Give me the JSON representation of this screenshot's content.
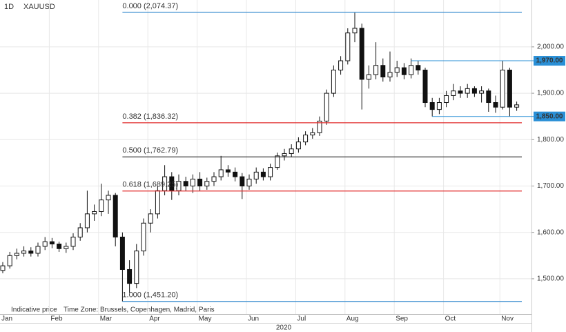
{
  "header": {
    "interval": "1D",
    "symbol": "XAUUSD"
  },
  "footer": {
    "note": "Indicative price",
    "timezone": "Time Zone: Brussels, Copenhagen, Madrid, Paris",
    "year": "2020"
  },
  "chart_data": {
    "type": "candlestick",
    "categories": [
      "Jan",
      null,
      null,
      null,
      null,
      null,
      null,
      "Feb",
      null,
      null,
      null,
      null,
      null,
      null,
      "Mar",
      null,
      null,
      null,
      null,
      null,
      null,
      "Apr",
      null,
      null,
      null,
      null,
      null,
      null,
      "May",
      null,
      null,
      null,
      null,
      null,
      null,
      "Jun",
      null,
      null,
      null,
      null,
      null,
      null,
      "Jul",
      null,
      null,
      null,
      null,
      null,
      null,
      "Aug",
      null,
      null,
      null,
      null,
      null,
      null,
      "Sep",
      null,
      null,
      null,
      null,
      null,
      null,
      "Oct",
      null,
      null,
      null,
      null,
      null,
      null,
      null,
      "Nov",
      null,
      null
    ],
    "open": [
      1518,
      1528,
      1550,
      1555,
      1560,
      1555,
      1570,
      1580,
      1575,
      1565,
      1570,
      1590,
      1610,
      1640,
      1645,
      1670,
      1680,
      1590,
      1520,
      1490,
      1560,
      1620,
      1640,
      1690,
      1720,
      1690,
      1710,
      1700,
      1715,
      1700,
      1710,
      1720,
      1735,
      1730,
      1720,
      1700,
      1715,
      1730,
      1720,
      1740,
      1765,
      1770,
      1780,
      1795,
      1810,
      1815,
      1840,
      1900,
      1950,
      1970,
      2030,
      2040,
      1930,
      1940,
      1960,
      1935,
      1945,
      1955,
      1940,
      1960,
      1950,
      1880,
      1865,
      1880,
      1895,
      1905,
      1900,
      1910,
      1900,
      1905,
      1880,
      1870,
      1950,
      1870
    ],
    "high": [
      1536,
      1558,
      1565,
      1570,
      1568,
      1578,
      1590,
      1588,
      1580,
      1578,
      1598,
      1620,
      1690,
      1660,
      1705,
      1690,
      1685,
      1600,
      1540,
      1575,
      1630,
      1650,
      1700,
      1745,
      1730,
      1725,
      1720,
      1725,
      1730,
      1718,
      1730,
      1765,
      1745,
      1740,
      1728,
      1725,
      1740,
      1738,
      1748,
      1772,
      1780,
      1790,
      1805,
      1818,
      1825,
      1850,
      1908,
      1960,
      1980,
      2040,
      2074.37,
      2050,
      1960,
      2010,
      1975,
      1990,
      1970,
      1965,
      1975,
      1970,
      1955,
      1890,
      1890,
      1905,
      1920,
      1915,
      1920,
      1915,
      1915,
      1910,
      1895,
      1970,
      1955,
      1882
    ],
    "low": [
      1512,
      1522,
      1542,
      1548,
      1548,
      1548,
      1562,
      1566,
      1558,
      1556,
      1562,
      1582,
      1600,
      1625,
      1635,
      1640,
      1570,
      1451.2,
      1470,
      1480,
      1550,
      1600,
      1630,
      1680,
      1670,
      1680,
      1690,
      1685,
      1690,
      1692,
      1700,
      1712,
      1720,
      1710,
      1672,
      1692,
      1705,
      1712,
      1712,
      1735,
      1755,
      1762,
      1772,
      1788,
      1802,
      1808,
      1832,
      1892,
      1940,
      1962,
      2010,
      1865,
      1910,
      1930,
      1925,
      1925,
      1935,
      1930,
      1932,
      1940,
      1870,
      1850,
      1855,
      1870,
      1885,
      1890,
      1890,
      1892,
      1880,
      1860,
      1858,
      1865,
      1850,
      1862
    ],
    "close": [
      1528,
      1550,
      1555,
      1560,
      1555,
      1570,
      1580,
      1575,
      1565,
      1570,
      1590,
      1610,
      1640,
      1645,
      1670,
      1680,
      1590,
      1520,
      1490,
      1560,
      1620,
      1640,
      1690,
      1720,
      1690,
      1710,
      1700,
      1715,
      1700,
      1710,
      1720,
      1735,
      1730,
      1720,
      1700,
      1715,
      1730,
      1720,
      1740,
      1765,
      1770,
      1780,
      1795,
      1810,
      1815,
      1840,
      1900,
      1950,
      1970,
      2030,
      2040,
      1930,
      1940,
      1960,
      1935,
      1945,
      1955,
      1940,
      1960,
      1950,
      1880,
      1865,
      1880,
      1895,
      1905,
      1900,
      1910,
      1900,
      1905,
      1880,
      1870,
      1950,
      1870,
      1875
    ],
    "ylim": [
      1424,
      2101
    ],
    "yticks": [
      {
        "value": 1500,
        "label": "1,500.00"
      },
      {
        "value": 1600,
        "label": "1,600.00"
      },
      {
        "value": 1700,
        "label": "1,700.00"
      },
      {
        "value": 1800,
        "label": "1,800.00"
      },
      {
        "value": 1900,
        "label": "1,900.00"
      },
      {
        "value": 2000,
        "label": "2,000.00"
      }
    ],
    "fib_levels": [
      {
        "label": "0.000 (2,074.37)",
        "value": 2074.37,
        "color": "#3d8fd1"
      },
      {
        "label": "0.382 (1,836.32)",
        "value": 1836.32,
        "color": "#e02a2a"
      },
      {
        "label": "0.500 (1,762.79)",
        "value": 1762.79,
        "color": "#222222"
      },
      {
        "label": "0.618 (1,689.25)",
        "value": 1689.25,
        "color": "#e02a2a"
      },
      {
        "label": "1.000 (1,451.20)",
        "value": 1451.2,
        "color": "#3d8fd1"
      }
    ],
    "levels": {
      "values": [
        1970,
        1850
      ],
      "value_labels": [
        "1,970.00",
        "1,850.00"
      ],
      "color": "#2a8fd6"
    },
    "grid": true
  }
}
